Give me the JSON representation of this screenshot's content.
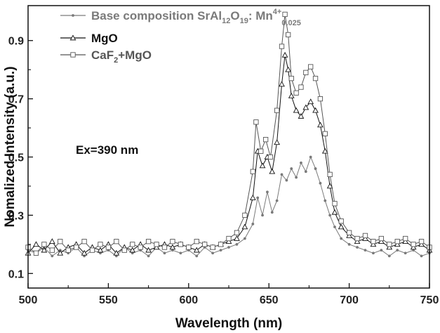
{
  "chart_data": {
    "type": "line",
    "xlabel": "Wavelength (nm)",
    "ylabel": "Nomalized Intensity (a.u.)",
    "xlim": [
      500,
      750
    ],
    "ylim": [
      0.05,
      1.02
    ],
    "x_ticks": [
      500,
      550,
      600,
      650,
      700,
      750
    ],
    "y_ticks": [
      0.1,
      0.3,
      0.5,
      0.7,
      0.9
    ],
    "grid": false,
    "legend_position": "top-left",
    "annotation": "Ex=390 nm",
    "series": [
      {
        "id": "base",
        "legend": {
          "prefix": "Base composition SrAl",
          "sub1": "12",
          "mid1": "O",
          "sub2": "19",
          "mid2": ": Mn",
          "sup": "4+",
          "sub3": "0.025"
        },
        "marker": "dot",
        "color": "#7a7a7a",
        "points": [
          [
            500,
            0.18
          ],
          [
            505,
            0.17
          ],
          [
            510,
            0.19
          ],
          [
            515,
            0.16
          ],
          [
            520,
            0.18
          ],
          [
            525,
            0.17
          ],
          [
            530,
            0.19
          ],
          [
            535,
            0.16
          ],
          [
            540,
            0.18
          ],
          [
            545,
            0.17
          ],
          [
            550,
            0.18
          ],
          [
            555,
            0.16
          ],
          [
            560,
            0.19
          ],
          [
            565,
            0.17
          ],
          [
            570,
            0.18
          ],
          [
            575,
            0.16
          ],
          [
            580,
            0.19
          ],
          [
            585,
            0.17
          ],
          [
            590,
            0.18
          ],
          [
            595,
            0.17
          ],
          [
            600,
            0.18
          ],
          [
            605,
            0.16
          ],
          [
            610,
            0.19
          ],
          [
            615,
            0.17
          ],
          [
            620,
            0.18
          ],
          [
            625,
            0.19
          ],
          [
            630,
            0.2
          ],
          [
            635,
            0.22
          ],
          [
            640,
            0.27
          ],
          [
            643,
            0.36
          ],
          [
            646,
            0.3
          ],
          [
            649,
            0.38
          ],
          [
            652,
            0.31
          ],
          [
            655,
            0.35
          ],
          [
            658,
            0.44
          ],
          [
            661,
            0.42
          ],
          [
            664,
            0.46
          ],
          [
            667,
            0.43
          ],
          [
            670,
            0.48
          ],
          [
            673,
            0.45
          ],
          [
            676,
            0.5
          ],
          [
            679,
            0.46
          ],
          [
            682,
            0.41
          ],
          [
            685,
            0.35
          ],
          [
            688,
            0.3
          ],
          [
            691,
            0.26
          ],
          [
            695,
            0.22
          ],
          [
            700,
            0.2
          ],
          [
            705,
            0.19
          ],
          [
            710,
            0.18
          ],
          [
            715,
            0.17
          ],
          [
            720,
            0.18
          ],
          [
            725,
            0.16
          ],
          [
            730,
            0.18
          ],
          [
            735,
            0.17
          ],
          [
            740,
            0.18
          ],
          [
            745,
            0.16
          ],
          [
            750,
            0.17
          ]
        ]
      },
      {
        "id": "mgo",
        "legend": {
          "label": "MgO"
        },
        "marker": "triangle",
        "color": "#111111",
        "points": [
          [
            500,
            0.17
          ],
          [
            505,
            0.2
          ],
          [
            510,
            0.18
          ],
          [
            515,
            0.21
          ],
          [
            520,
            0.17
          ],
          [
            525,
            0.19
          ],
          [
            530,
            0.2
          ],
          [
            535,
            0.17
          ],
          [
            540,
            0.19
          ],
          [
            545,
            0.18
          ],
          [
            550,
            0.2
          ],
          [
            555,
            0.17
          ],
          [
            560,
            0.19
          ],
          [
            565,
            0.18
          ],
          [
            570,
            0.2
          ],
          [
            575,
            0.18
          ],
          [
            580,
            0.19
          ],
          [
            585,
            0.2
          ],
          [
            590,
            0.19
          ],
          [
            595,
            0.2
          ],
          [
            600,
            0.19
          ],
          [
            605,
            0.18
          ],
          [
            610,
            0.2
          ],
          [
            615,
            0.19
          ],
          [
            620,
            0.2
          ],
          [
            625,
            0.21
          ],
          [
            630,
            0.22
          ],
          [
            635,
            0.26
          ],
          [
            640,
            0.36
          ],
          [
            643,
            0.52
          ],
          [
            646,
            0.47
          ],
          [
            649,
            0.5
          ],
          [
            652,
            0.45
          ],
          [
            655,
            0.55
          ],
          [
            658,
            0.75
          ],
          [
            660,
            0.85
          ],
          [
            662,
            0.8
          ],
          [
            664,
            0.71
          ],
          [
            667,
            0.66
          ],
          [
            670,
            0.64
          ],
          [
            673,
            0.67
          ],
          [
            676,
            0.69
          ],
          [
            679,
            0.66
          ],
          [
            682,
            0.61
          ],
          [
            685,
            0.52
          ],
          [
            688,
            0.4
          ],
          [
            691,
            0.31
          ],
          [
            695,
            0.26
          ],
          [
            700,
            0.23
          ],
          [
            705,
            0.21
          ],
          [
            710,
            0.22
          ],
          [
            715,
            0.2
          ],
          [
            720,
            0.21
          ],
          [
            725,
            0.19
          ],
          [
            730,
            0.2
          ],
          [
            735,
            0.21
          ],
          [
            740,
            0.19
          ],
          [
            745,
            0.2
          ],
          [
            750,
            0.18
          ]
        ]
      },
      {
        "id": "caf2",
        "legend": {
          "prefix": "CaF",
          "sub1": "2",
          "mid1": "+MgO"
        },
        "marker": "square",
        "color": "#555555",
        "points": [
          [
            500,
            0.19
          ],
          [
            505,
            0.17
          ],
          [
            510,
            0.2
          ],
          [
            515,
            0.18
          ],
          [
            520,
            0.21
          ],
          [
            525,
            0.18
          ],
          [
            530,
            0.19
          ],
          [
            535,
            0.21
          ],
          [
            540,
            0.18
          ],
          [
            545,
            0.2
          ],
          [
            550,
            0.19
          ],
          [
            555,
            0.21
          ],
          [
            560,
            0.18
          ],
          [
            565,
            0.2
          ],
          [
            570,
            0.19
          ],
          [
            575,
            0.21
          ],
          [
            580,
            0.2
          ],
          [
            585,
            0.19
          ],
          [
            590,
            0.21
          ],
          [
            595,
            0.2
          ],
          [
            600,
            0.19
          ],
          [
            605,
            0.21
          ],
          [
            610,
            0.2
          ],
          [
            615,
            0.19
          ],
          [
            620,
            0.2
          ],
          [
            625,
            0.22
          ],
          [
            630,
            0.24
          ],
          [
            635,
            0.3
          ],
          [
            640,
            0.45
          ],
          [
            642,
            0.62
          ],
          [
            645,
            0.52
          ],
          [
            648,
            0.56
          ],
          [
            651,
            0.5
          ],
          [
            655,
            0.66
          ],
          [
            658,
            0.88
          ],
          [
            660,
            0.99
          ],
          [
            662,
            0.92
          ],
          [
            664,
            0.77
          ],
          [
            667,
            0.72
          ],
          [
            670,
            0.74
          ],
          [
            673,
            0.79
          ],
          [
            676,
            0.81
          ],
          [
            679,
            0.77
          ],
          [
            682,
            0.7
          ],
          [
            685,
            0.58
          ],
          [
            688,
            0.44
          ],
          [
            691,
            0.34
          ],
          [
            695,
            0.28
          ],
          [
            700,
            0.24
          ],
          [
            705,
            0.22
          ],
          [
            710,
            0.23
          ],
          [
            715,
            0.21
          ],
          [
            720,
            0.22
          ],
          [
            725,
            0.2
          ],
          [
            730,
            0.21
          ],
          [
            735,
            0.22
          ],
          [
            740,
            0.2
          ],
          [
            745,
            0.21
          ],
          [
            750,
            0.19
          ]
        ]
      }
    ]
  }
}
